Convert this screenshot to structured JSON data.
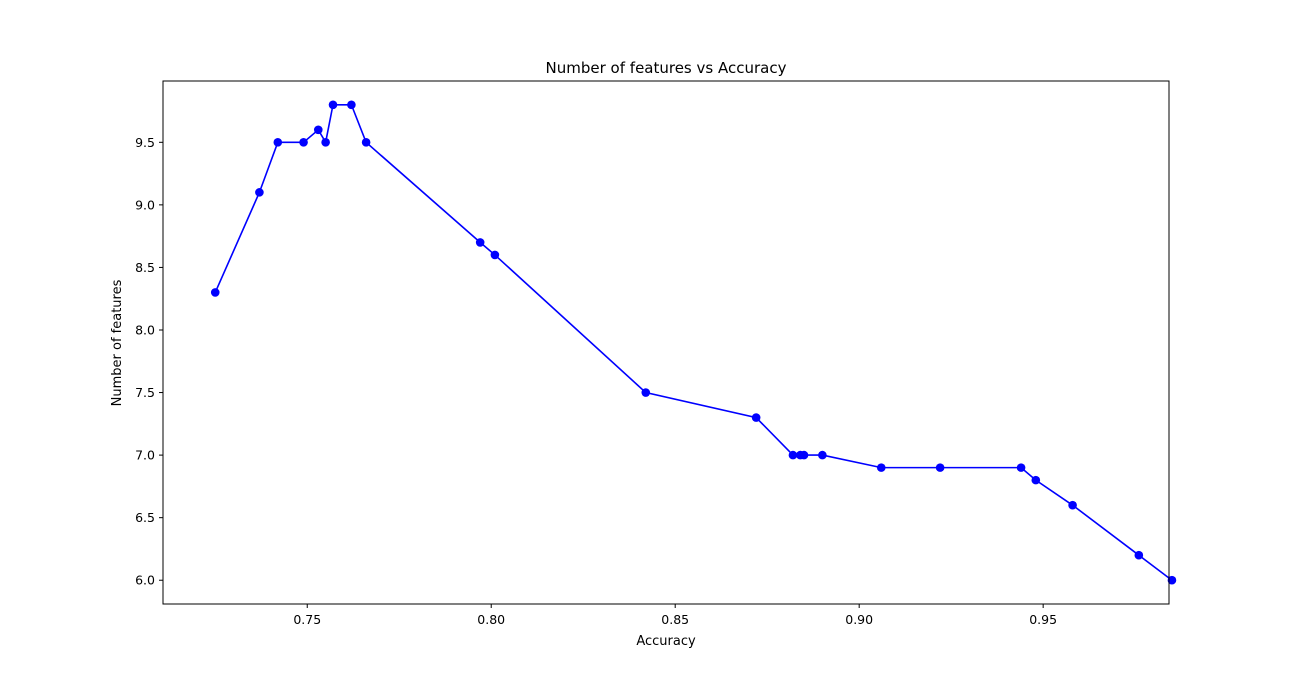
{
  "chart_data": {
    "type": "line",
    "title": "Number of features vs Accuracy",
    "xlabel": "Accuracy",
    "ylabel": "Number of features",
    "xlim": [
      0.7108,
      0.9842
    ],
    "ylim": [
      5.81,
      9.99
    ],
    "xticks": [
      0.75,
      0.8,
      0.85,
      0.9,
      0.95
    ],
    "xtick_labels": [
      "0.75",
      "0.80",
      "0.85",
      "0.90",
      "0.95"
    ],
    "yticks": [
      6.0,
      6.5,
      7.0,
      7.5,
      8.0,
      8.5,
      9.0,
      9.5
    ],
    "ytick_labels": [
      "6.0",
      "6.5",
      "7.0",
      "7.5",
      "8.0",
      "8.5",
      "9.0",
      "9.5"
    ],
    "grid": false,
    "line_color": "#0000ff",
    "marker": "circle",
    "series": [
      {
        "x": [
          0.725,
          0.737,
          0.742,
          0.749,
          0.753,
          0.755,
          0.757,
          0.762,
          0.766,
          0.797,
          0.801,
          0.842,
          0.872,
          0.882,
          0.884,
          0.885,
          0.89,
          0.906,
          0.922,
          0.944,
          0.948,
          0.958,
          0.976,
          0.985
        ],
        "y": [
          8.3,
          9.1,
          9.5,
          9.5,
          9.6,
          9.5,
          9.8,
          9.8,
          9.5,
          8.7,
          8.6,
          7.5,
          7.3,
          7.0,
          7.0,
          7.0,
          7.0,
          6.9,
          6.9,
          6.9,
          6.8,
          6.6,
          6.2,
          6.0
        ]
      }
    ]
  }
}
